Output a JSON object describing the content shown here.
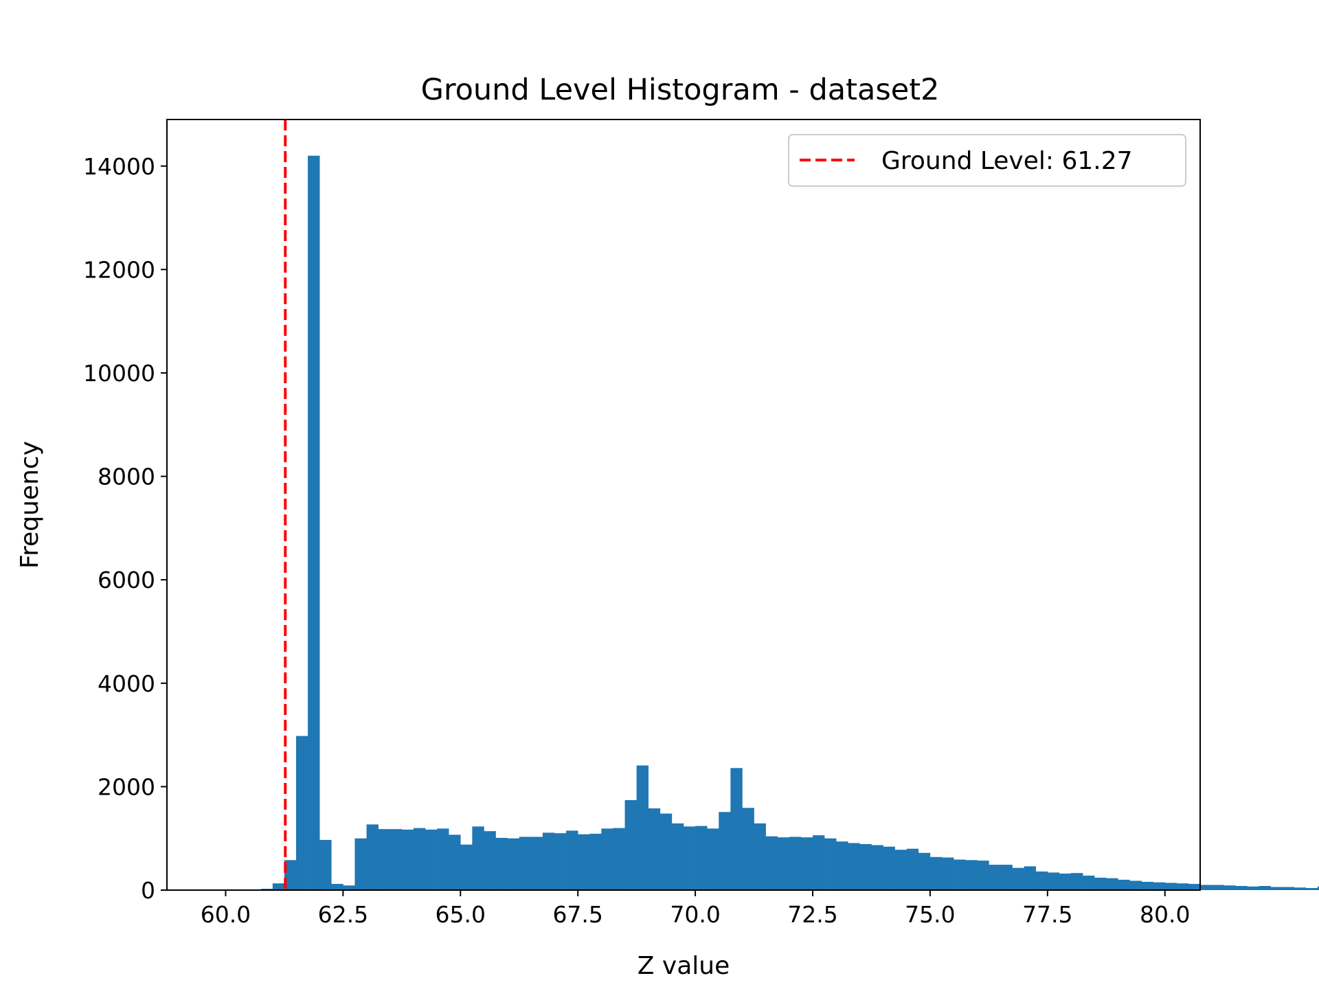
{
  "chart_data": {
    "type": "bar",
    "title": "Ground Level Histogram - dataset2",
    "xlabel": "Z value",
    "ylabel": "Frequency",
    "xlim": [
      58.75,
      80.75
    ],
    "ylim": [
      0,
      14900
    ],
    "xticks": [
      "60.0",
      "62.5",
      "65.0",
      "67.5",
      "70.0",
      "72.5",
      "75.0",
      "77.5",
      "80.0"
    ],
    "yticks": [
      "0",
      "2000",
      "4000",
      "6000",
      "8000",
      "10000",
      "12000",
      "14000"
    ],
    "bin_start": 60.0,
    "bin_width": 0.25,
    "counts": [
      2,
      6,
      12,
      25,
      130,
      580,
      2980,
      14200,
      970,
      120,
      90,
      1000,
      1270,
      1180,
      1180,
      1170,
      1200,
      1170,
      1190,
      1070,
      880,
      1230,
      1140,
      1010,
      1000,
      1030,
      1030,
      1110,
      1100,
      1150,
      1080,
      1090,
      1190,
      1200,
      1740,
      2410,
      1580,
      1480,
      1290,
      1230,
      1240,
      1190,
      1510,
      2360,
      1590,
      1290,
      1040,
      1020,
      1030,
      1020,
      1060,
      1000,
      940,
      910,
      890,
      870,
      840,
      780,
      800,
      720,
      640,
      630,
      590,
      580,
      570,
      490,
      490,
      430,
      460,
      360,
      340,
      320,
      330,
      280,
      240,
      230,
      200,
      180,
      160,
      150,
      140,
      130,
      120,
      100,
      100,
      90,
      80,
      70,
      80,
      60,
      60,
      50,
      40,
      70,
      30,
      20,
      10,
      5,
      3,
      2
    ],
    "series_color": "#1f77b4",
    "ground_level": 61.27,
    "ground_level_color": "#ff0000",
    "legend": {
      "label": "Ground Level: 61.27",
      "position": "top-right"
    },
    "grid": false
  }
}
